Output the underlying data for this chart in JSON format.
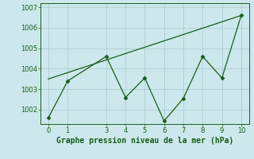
{
  "x": [
    0,
    1,
    3,
    4,
    5,
    6,
    7,
    8,
    9,
    10
  ],
  "y_line": [
    1001.6,
    1003.4,
    1004.6,
    1002.6,
    1003.55,
    1001.45,
    1002.55,
    1004.6,
    1003.55,
    1006.6
  ],
  "trend_x": [
    0,
    10
  ],
  "trend_y": [
    1003.5,
    1006.6
  ],
  "line_color": "#1a5c1a",
  "bg_color": "#cce8ec",
  "grid_color": "#b0cdd1",
  "xlabel": "Graphe pression niveau de la mer (hPa)",
  "ylim": [
    1001.3,
    1007.2
  ],
  "xlim": [
    -0.4,
    10.4
  ],
  "yticks": [
    1002,
    1003,
    1004,
    1005,
    1006,
    1007
  ],
  "xticks": [
    0,
    1,
    3,
    4,
    5,
    6,
    7,
    8,
    9,
    10
  ]
}
